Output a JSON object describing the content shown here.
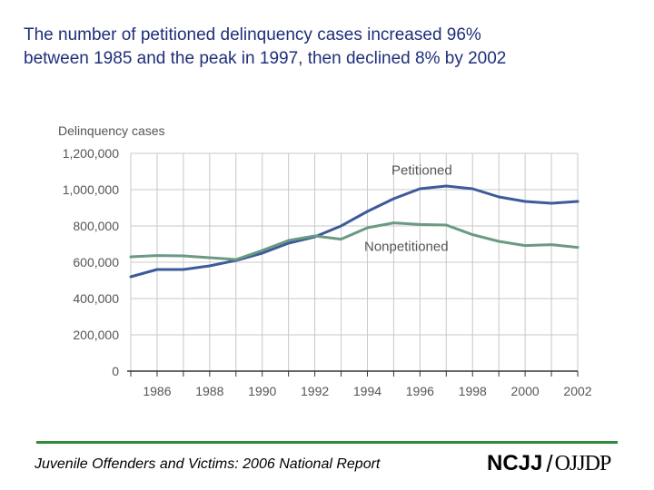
{
  "title": {
    "line1": "The number of petitioned delinquency cases increased 96%",
    "line2": "between 1985 and the peak in 1997, then declined 8% by 2002"
  },
  "colors": {
    "petitioned": "#3d5a9a",
    "nonpetitioned": "#6b9a82",
    "grid": "#c8c8c8",
    "axis_text": "#555555",
    "footer_rule": "#2f8a3a",
    "title_text": "#1f2f7a"
  },
  "chart_data": {
    "type": "line",
    "ylabel": "Delinquency cases",
    "ylim": [
      0,
      1200000
    ],
    "yticks": [
      0,
      200000,
      400000,
      600000,
      800000,
      1000000,
      1200000
    ],
    "ytick_labels": [
      "0",
      "200,000",
      "400,000",
      "600,000",
      "800,000",
      "1,000,000",
      "1,200,000"
    ],
    "xlim": [
      1985,
      2002
    ],
    "xtick_labels": [
      "1986",
      "1988",
      "1990",
      "1992",
      "1994",
      "1996",
      "1998",
      "2000",
      "2002"
    ],
    "x": [
      1985,
      1986,
      1987,
      1988,
      1989,
      1990,
      1991,
      1992,
      1993,
      1994,
      1995,
      1996,
      1997,
      1998,
      1999,
      2000,
      2001,
      2002
    ],
    "grid": true,
    "series": [
      {
        "name": "Petitioned",
        "values": [
          520000,
          560000,
          560000,
          580000,
          610000,
          650000,
          705000,
          740000,
          800000,
          880000,
          950000,
          1005000,
          1020000,
          1005000,
          960000,
          935000,
          925000,
          935000
        ]
      },
      {
        "name": "Nonpetitioned",
        "values": [
          630000,
          637000,
          635000,
          625000,
          615000,
          665000,
          720000,
          745000,
          727000,
          790000,
          817000,
          808000,
          805000,
          752000,
          715000,
          692000,
          697000,
          682000
        ]
      }
    ]
  },
  "footer": {
    "text": "Juvenile Offenders and Victims: 2006 National Report",
    "logo_left": "NCJJ",
    "logo_slash": "/",
    "logo_right": "OJJDP"
  }
}
